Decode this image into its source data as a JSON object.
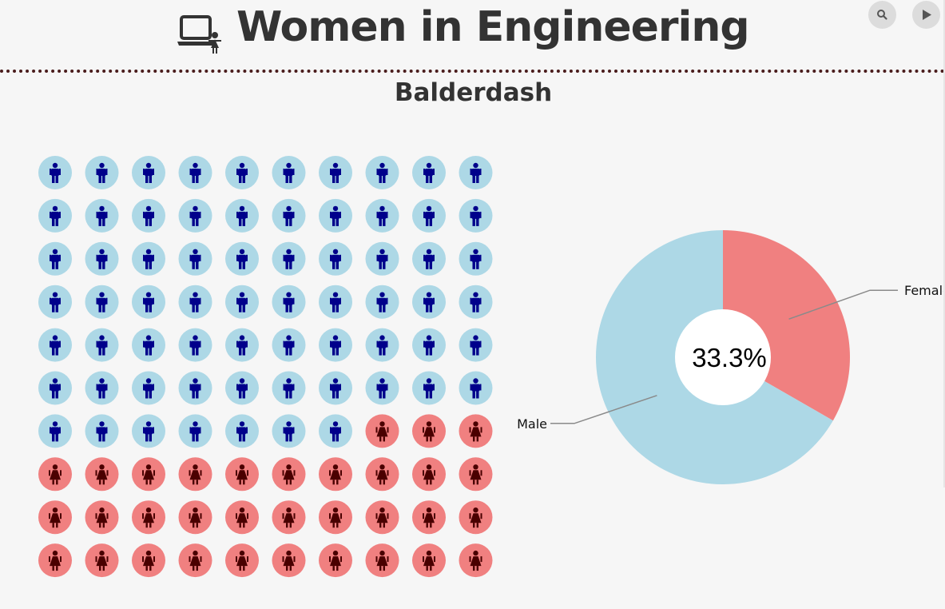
{
  "header": {
    "title": "Women in Engineering",
    "title_icon": "laptop-with-woman-icon",
    "search_icon": "search-icon",
    "play_icon": "play-icon"
  },
  "chart_data": [
    {
      "type": "pictogram",
      "title": "Balderdash",
      "rows": 10,
      "columns": 10,
      "categories": [
        "Male",
        "Female"
      ],
      "values": [
        67,
        33
      ],
      "icons": [
        "man-icon",
        "woman-icon"
      ],
      "colors": {
        "male_circle": "#add8e6",
        "male_figure": "#00008b",
        "female_circle": "#f08080",
        "female_figure": "#4a0000"
      }
    },
    {
      "type": "pie",
      "donut": true,
      "center_label": "33.3%",
      "slices": [
        {
          "label": "Female",
          "value": 33.3,
          "color": "#f08080"
        },
        {
          "label": "Male",
          "value": 66.7,
          "color": "#add8e6"
        }
      ]
    }
  ]
}
